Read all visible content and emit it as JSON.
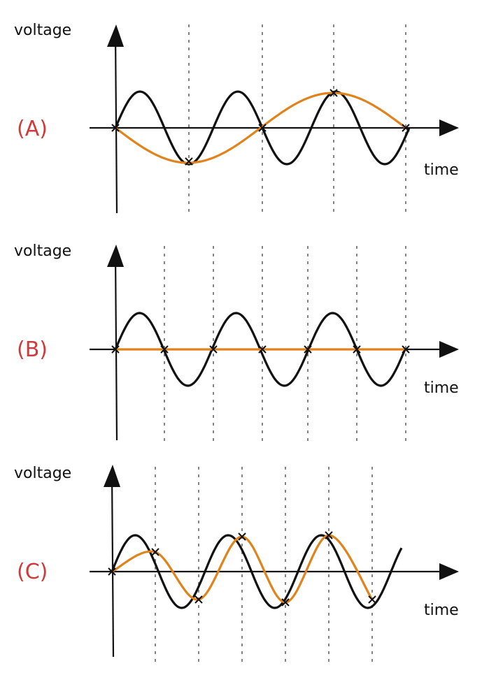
{
  "panels": [
    {
      "label": "(A)",
      "y_axis_label": "voltage",
      "x_axis_label": "time"
    },
    {
      "label": "(B)",
      "y_axis_label": "voltage",
      "x_axis_label": "time"
    },
    {
      "label": "(C)",
      "y_axis_label": "voltage",
      "x_axis_label": "time"
    }
  ]
}
